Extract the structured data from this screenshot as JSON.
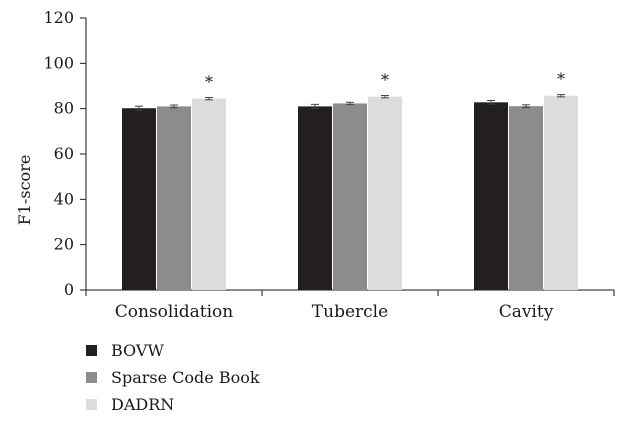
{
  "chart_data": {
    "type": "bar",
    "ylabel": "F1-score",
    "ylim": [
      0,
      120
    ],
    "yticks": [
      0,
      20,
      40,
      60,
      80,
      100,
      120
    ],
    "categories": [
      "Consolidation",
      "Tubercle",
      "Cavity"
    ],
    "series": [
      {
        "name": "BOVW",
        "color": "#231f20",
        "values": [
          80.2,
          81.0,
          82.8
        ],
        "errors": [
          0.9,
          0.9,
          0.8
        ]
      },
      {
        "name": "Sparse Code Book",
        "color": "#8c8c8c",
        "values": [
          81.0,
          82.3,
          81.1
        ],
        "errors": [
          0.6,
          0.5,
          0.6
        ]
      },
      {
        "name": "DADRN",
        "color": "#dcdcdc",
        "values": [
          84.4,
          85.3,
          85.7
        ],
        "errors": [
          0.5,
          0.5,
          0.5
        ]
      }
    ],
    "annotations": [
      "*",
      "*",
      "*"
    ],
    "legend_position": "bottom-left",
    "grid": false
  }
}
